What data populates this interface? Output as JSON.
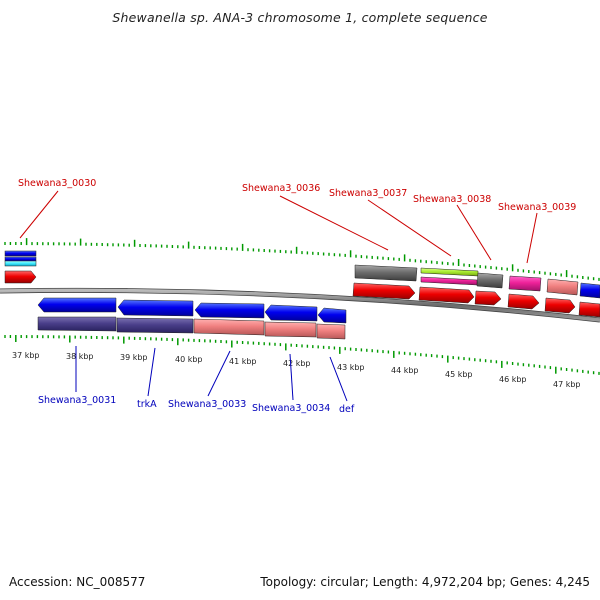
{
  "title": "Shewanella sp. ANA-3 chromosome 1, complete sequence",
  "footer": {
    "accession": "Accession: NC_008577",
    "topology": "Topology: circular; Length: 4,972,204 bp; Genes: 4,245"
  },
  "colors": {
    "forward_label": "#cc0000",
    "reverse_label": "#0000bb",
    "tick": "#009900",
    "backbone": "#7a7a7a"
  },
  "scale_labels": [
    "37 kbp",
    "38 kbp",
    "39 kbp",
    "40 kbp",
    "41 kbp",
    "42 kbp",
    "43 kbp",
    "44 kbp",
    "45 kbp",
    "46 kbp",
    "47 kbp"
  ],
  "forward_gene_labels": [
    "Shewana3_0030",
    "Shewana3_0036",
    "Shewana3_0037",
    "Shewana3_0038",
    "Shewana3_0039"
  ],
  "reverse_gene_labels": [
    "Shewana3_0031",
    "trkA",
    "Shewana3_0033",
    "Shewana3_0034",
    "def"
  ]
}
